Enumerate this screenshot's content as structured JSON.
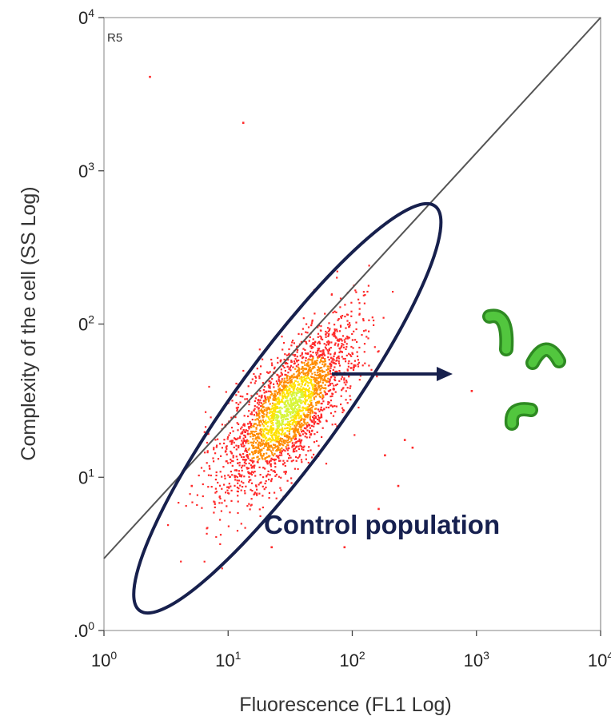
{
  "chart_data": {
    "type": "scatter",
    "xlabel": "Fluorescence (FL1 Log)",
    "ylabel": "Complexity of the cell (SS Log)",
    "x_scale": "log",
    "xlim": [
      1,
      10000
    ],
    "x_ticks": [
      {
        "base": "10",
        "exp": "0",
        "value": 1
      },
      {
        "base": "10",
        "exp": "1",
        "value": 10
      },
      {
        "base": "10",
        "exp": "2",
        "value": 100
      },
      {
        "base": "10",
        "exp": "3",
        "value": 1000
      },
      {
        "base": "10",
        "exp": "4",
        "value": 10000
      }
    ],
    "y_ticks": [
      {
        "label": ".0",
        "exp": "0",
        "level": 0
      },
      {
        "label": "0",
        "exp": "1",
        "level": 1
      },
      {
        "label": "0",
        "exp": "2",
        "level": 2
      },
      {
        "label": "0",
        "exp": "3",
        "level": 3
      },
      {
        "label": "0",
        "exp": "4",
        "level": 4
      }
    ],
    "ylim_levels": [
      0,
      4
    ],
    "region_label": "R5",
    "region_line": {
      "from": [
        1,
        0.47
      ],
      "to": [
        10000,
        4
      ]
    },
    "gate_label": "Control population",
    "gate": {
      "center": [
        30,
        1.45
      ],
      "semi_axis_along": 1.72,
      "semi_axis_across": 0.36
    },
    "cluster": {
      "center": [
        30,
        1.45
      ],
      "count": 2600
    },
    "outliers": [
      [
        2.3,
        3.62
      ],
      [
        13,
        3.32
      ],
      [
        6.8,
        1.29
      ],
      [
        900,
        1.57
      ],
      [
        300,
        1.2
      ],
      [
        85,
        0.55
      ],
      [
        180,
        1.15
      ],
      [
        160,
        0.8
      ],
      [
        260,
        1.25
      ],
      [
        230,
        0.95
      ],
      [
        22,
        0.55
      ],
      [
        5,
        0.95
      ]
    ],
    "colors": {
      "points_low": "#ff2a2a",
      "points_mid": "#ff8c00",
      "points_high": "#ffe100",
      "points_core": "#d8f53a",
      "gate_stroke": "#17204d",
      "arrow": "#17204d",
      "diagonal": "#555555",
      "bacteria": "#45b534"
    },
    "icons": [
      "arrow-right-icon",
      "bacteria-icon"
    ]
  }
}
